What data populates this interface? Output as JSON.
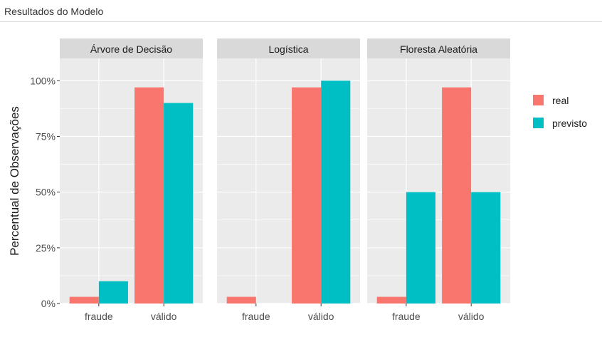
{
  "window": {
    "title": "Resultados do Modelo"
  },
  "colors": {
    "real": "#F8766D",
    "previsto": "#00BFC4",
    "panel_bg": "#EBEBEB",
    "strip_bg": "#D9D9D9",
    "grid": "#FFFFFF"
  },
  "chart_data": {
    "type": "bar",
    "ylabel": "Percentual de Observações",
    "xlabel": "",
    "ylim": [
      0,
      1.1
    ],
    "yticks": [
      0,
      0.25,
      0.5,
      0.75,
      1.0
    ],
    "ytick_labels": [
      "0%",
      "25%",
      "50%",
      "75%",
      "100%"
    ],
    "categories": [
      "fraude",
      "válido"
    ],
    "legend": {
      "position": "right",
      "entries": [
        "real",
        "previsto"
      ]
    },
    "panels": [
      {
        "title": "Árvore de Decisão",
        "series": [
          {
            "name": "real",
            "values": [
              0.03,
              0.97
            ]
          },
          {
            "name": "previsto",
            "values": [
              0.1,
              0.9
            ]
          }
        ]
      },
      {
        "title": "Logística",
        "series": [
          {
            "name": "real",
            "values": [
              0.03,
              0.97
            ]
          },
          {
            "name": "previsto",
            "values": [
              0.0,
              1.0
            ]
          }
        ]
      },
      {
        "title": "Floresta Aleatória",
        "series": [
          {
            "name": "real",
            "values": [
              0.03,
              0.97
            ]
          },
          {
            "name": "previsto",
            "values": [
              0.5,
              0.5
            ]
          }
        ]
      }
    ]
  }
}
